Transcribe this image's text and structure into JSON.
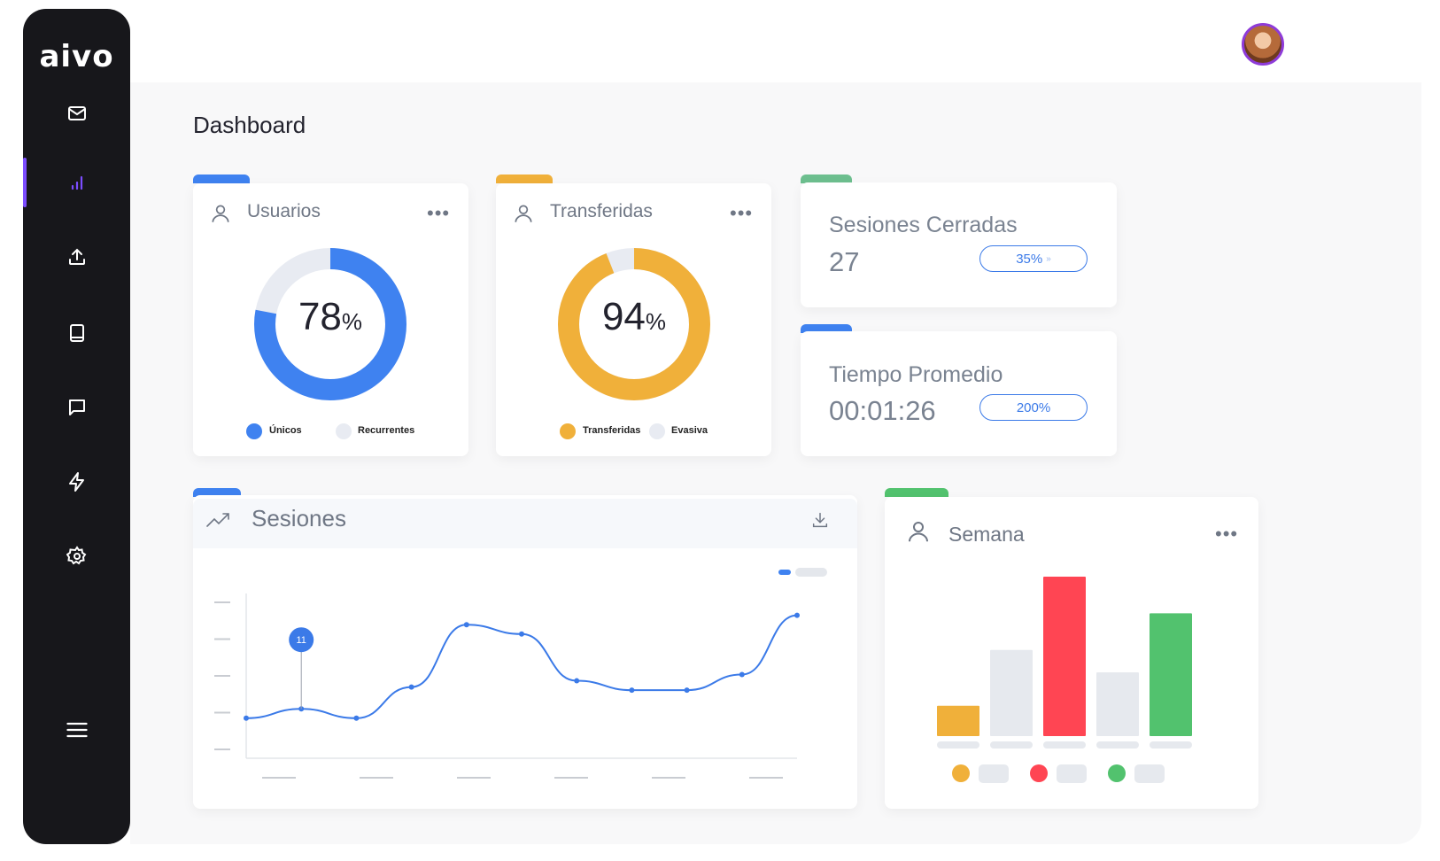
{
  "brand": {
    "logo_text": "aivo"
  },
  "sidebar": {
    "items": [
      {
        "name": "inbox",
        "icon": "mail-icon"
      },
      {
        "name": "analytics",
        "icon": "bar-chart-icon",
        "active": true
      },
      {
        "name": "upload",
        "icon": "upload-icon"
      },
      {
        "name": "knowledge",
        "icon": "book-icon"
      },
      {
        "name": "chat",
        "icon": "chat-icon"
      },
      {
        "name": "automations",
        "icon": "lightning-icon"
      },
      {
        "name": "settings",
        "icon": "gear-icon"
      }
    ],
    "menu_icon": "hamburger-icon",
    "active_color": "#7c4dff"
  },
  "header": {
    "title": "Dashboard"
  },
  "cards": {
    "usuarios": {
      "title": "Usuarios",
      "percent": 78,
      "percent_sign": "%",
      "legend": [
        "Únicos",
        "Recurrentes"
      ],
      "colors": [
        "#3f82f0",
        "#e8ebf2"
      ]
    },
    "transferidas": {
      "title": "Transferidas",
      "percent": 94,
      "percent_sign": "%",
      "legend": [
        "Transferidas",
        "Evasiva"
      ],
      "colors": [
        "#f0b03a",
        "#e8ebf2"
      ]
    },
    "sesiones_cerradas": {
      "title": "Sesiones Cerradas",
      "value": "27",
      "badge": "35%",
      "badge_arrow": "»"
    },
    "tiempo_promedio": {
      "title": "Tiempo Promedio",
      "value": "00:01:26",
      "badge": "200%"
    },
    "sesiones": {
      "title": "Sesiones",
      "tooltip": "11"
    },
    "semana": {
      "title": "Semana"
    }
  },
  "chart_data": [
    {
      "type": "line",
      "x": [
        0,
        1,
        2,
        3,
        4,
        5,
        6,
        7,
        8,
        9,
        10
      ],
      "values": [
        1,
        1.3,
        1.0,
        2.0,
        4.0,
        3.7,
        2.2,
        1.9,
        1.9,
        2.4,
        4.3
      ],
      "ylim": [
        0,
        5
      ],
      "highlight": {
        "index": 1,
        "label": "11"
      },
      "color": "#3b7ae8"
    },
    {
      "type": "bar",
      "values": [
        0.19,
        0.54,
        1.0,
        0.4,
        0.77
      ],
      "colors": [
        "#f0b03a",
        "#e6e9ee",
        "#ff4553",
        "#e6e9ee",
        "#52c26e"
      ],
      "ylim": [
        0,
        1
      ]
    }
  ]
}
